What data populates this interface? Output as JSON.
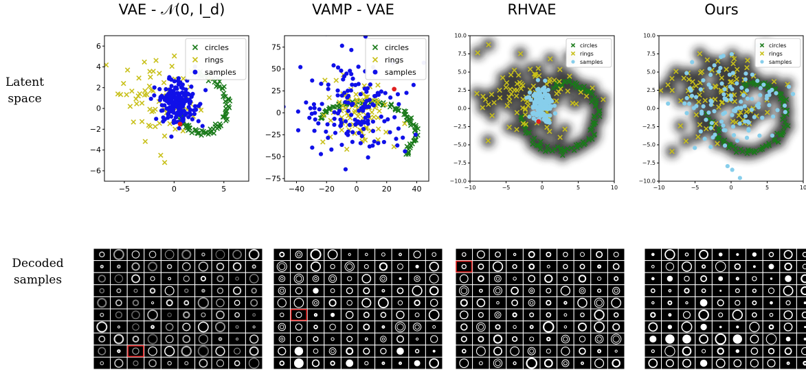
{
  "column_titles": [
    "VAE - 𝒩(0, I_d)",
    "VAMP - VAE",
    "RHVAE",
    "Ours"
  ],
  "row_labels": {
    "latent": "Latent\nspace",
    "decoded": "Decoded\nsamples"
  },
  "colors": {
    "circles": "#1a7a1a",
    "rings": "#c8c01a",
    "samples_dark": "#1010e8",
    "samples_light": "#87ceeb",
    "highlight": "#e02020"
  },
  "chart_data": [
    {
      "type": "scatter",
      "title": "VAE - 𝒩(0, I_d)",
      "xlim": [
        -7,
        7.5
      ],
      "ylim": [
        -7,
        7
      ],
      "xticks": [
        -5,
        0,
        5
      ],
      "yticks": [
        -6,
        -4,
        -2,
        0,
        2,
        4,
        6
      ],
      "legend": "top-right",
      "series": [
        {
          "name": "circles",
          "marker": "x",
          "color": "#1a7a1a",
          "shape": "spiral",
          "center": [
            2.5,
            0
          ],
          "r_start": 3.3,
          "r_end": 1.8,
          "theta_start": 100,
          "theta_end": -190,
          "n": 90
        },
        {
          "name": "rings",
          "marker": "x",
          "color": "#c8c01a",
          "center": [
            -1,
            0.5
          ],
          "spread": [
            2.5,
            1.8
          ],
          "n": 70
        },
        {
          "name": "samples",
          "marker": "o",
          "color": "#1010e8",
          "center": [
            0.3,
            0.6
          ],
          "spread": [
            1.0,
            1.2
          ],
          "n": 180
        }
      ],
      "highlight_point": [
        0.6,
        -1.5
      ],
      "heatmap": false
    },
    {
      "type": "scatter",
      "title": "VAMP - VAE",
      "xlim": [
        -48,
        48
      ],
      "ylim": [
        -78,
        88
      ],
      "xticks": [
        -40,
        -20,
        0,
        20,
        40
      ],
      "yticks": [
        -75,
        -50,
        -25,
        0,
        25,
        50,
        75
      ],
      "legend": "top-right",
      "series": [
        {
          "name": "circles",
          "marker": "x",
          "color": "#1a7a1a",
          "shape": "spiral",
          "center": [
            0,
            -20
          ],
          "r_start": 28,
          "r_end": 42,
          "theta_start": 150,
          "theta_end": -40,
          "n": 90
        },
        {
          "name": "rings",
          "marker": "x",
          "color": "#c8c01a",
          "center": [
            0,
            5
          ],
          "spread": [
            10,
            15
          ],
          "n": 90
        },
        {
          "name": "samples",
          "marker": "o",
          "color": "#1010e8",
          "center": [
            0,
            5
          ],
          "spread": [
            18,
            30
          ],
          "n": 150
        }
      ],
      "highlight_point": [
        25,
        27
      ],
      "heatmap": false
    },
    {
      "type": "scatter",
      "title": "RHVAE",
      "xlim": [
        -10,
        10
      ],
      "ylim": [
        -10,
        10
      ],
      "xticks": [
        -10,
        -5,
        0,
        5,
        10
      ],
      "yticks": [
        -10.0,
        -7.5,
        -5.0,
        -2.5,
        0.0,
        2.5,
        5.0,
        7.5,
        10.0
      ],
      "legend": "top-right",
      "series": [
        {
          "name": "circles",
          "marker": "x",
          "color": "#1a7a1a",
          "shape": "spiral",
          "center": [
            3,
            -0.5
          ],
          "r_start": 3.8,
          "r_end": 6,
          "theta_start": 110,
          "theta_end": -175,
          "n": 90
        },
        {
          "name": "rings",
          "marker": "x",
          "color": "#c8c01a",
          "center": [
            -2,
            1.5
          ],
          "spread": [
            3.5,
            2.8
          ],
          "n": 90
        },
        {
          "name": "samples",
          "marker": "o",
          "color": "#87ceeb",
          "center": [
            0,
            0.5
          ],
          "spread": [
            0.8,
            1.2
          ],
          "n": 130
        }
      ],
      "highlight_point": [
        -0.5,
        -1.8
      ],
      "heatmap": true
    },
    {
      "type": "scatter",
      "title": "Ours",
      "xlim": [
        -10,
        10
      ],
      "ylim": [
        -10,
        10
      ],
      "xticks": [
        -10,
        -5,
        0,
        5,
        10
      ],
      "yticks": [
        -10.0,
        -7.5,
        -5.0,
        -2.5,
        0.0,
        2.5,
        5.0,
        7.5,
        10.0
      ],
      "legend": "top-right",
      "series": [
        {
          "name": "circles",
          "marker": "x",
          "color": "#1a7a1a",
          "shape": "spiral",
          "center": [
            3,
            -0.5
          ],
          "r_start": 3.8,
          "r_end": 6,
          "theta_start": 110,
          "theta_end": -175,
          "n": 90
        },
        {
          "name": "rings",
          "marker": "x",
          "color": "#c8c01a",
          "center": [
            -2,
            1.5
          ],
          "spread": [
            3.5,
            2.8
          ],
          "n": 90
        },
        {
          "name": "samples",
          "marker": "o",
          "color": "#87ceeb",
          "center": [
            0,
            0.5
          ],
          "spread": [
            4,
            3
          ],
          "n": 120
        }
      ],
      "heatmap": true
    }
  ],
  "decoded_grids": [
    {
      "rows": 10,
      "cols": 10,
      "style": "faint",
      "highlight_cell": [
        8,
        2
      ]
    },
    {
      "rows": 10,
      "cols": 10,
      "style": "mixed",
      "highlight_cell": [
        5,
        1
      ]
    },
    {
      "rows": 10,
      "cols": 10,
      "style": "rings",
      "highlight_cell": [
        1,
        0
      ]
    },
    {
      "rows": 10,
      "cols": 10,
      "style": "clean",
      "highlight_cell": null
    }
  ]
}
